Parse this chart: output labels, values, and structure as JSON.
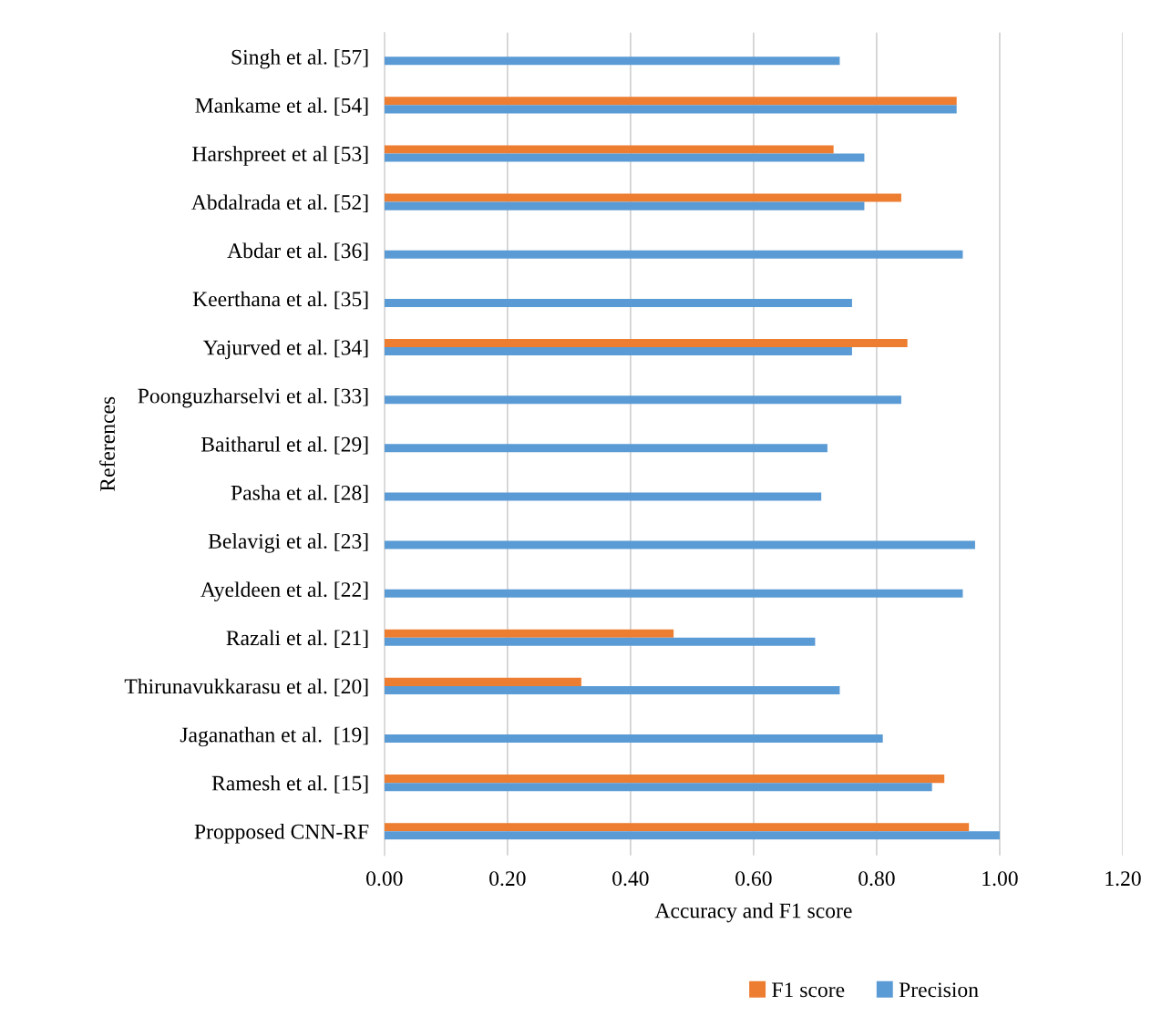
{
  "chart_data": {
    "type": "bar",
    "orientation": "horizontal",
    "xlabel": "Accuracy and F1 score",
    "ylabel": "References",
    "categories": [
      "Singh et al. [57]",
      "Mankame et al. [54]",
      "Harshpreet et al [53]",
      "Abdalrada et al. [52]",
      "Abdar et al. [36]",
      "Keerthana et al. [35]",
      "Yajurved et al. [34]",
      "Poonguzharselvi et al. [33]",
      "Baitharul et al. [29]",
      "Pasha et al. [28]",
      "Belavigi et al. [23]",
      "Ayeldeen et al. [22]",
      "Razali et al. [21]",
      "Thirunavukkarasu et al. [20]",
      "Jaganathan et al.  [19]",
      "Ramesh et al. [15]",
      "Propposed CNN-RF"
    ],
    "series": [
      {
        "name": "F1 score",
        "color": "#ed7d31",
        "values": [
          null,
          0.93,
          0.73,
          0.84,
          null,
          null,
          0.85,
          null,
          null,
          null,
          null,
          null,
          0.47,
          0.32,
          null,
          0.91,
          0.95
        ]
      },
      {
        "name": "Precision",
        "color": "#5b9bd5",
        "values": [
          0.74,
          0.93,
          0.78,
          0.78,
          0.94,
          0.76,
          0.76,
          0.84,
          0.72,
          0.71,
          0.96,
          0.94,
          0.7,
          0.74,
          0.81,
          0.89,
          1.0
        ]
      }
    ],
    "xlim": [
      0,
      1.2
    ],
    "xticks": [
      {
        "value": 0,
        "label": "0.00"
      },
      {
        "value": 0.2,
        "label": "0.20"
      },
      {
        "value": 0.4,
        "label": "0.40"
      },
      {
        "value": 0.6,
        "label": "0.60"
      },
      {
        "value": 0.8,
        "label": "0.80"
      },
      {
        "value": 1.0,
        "label": "1.00"
      },
      {
        "value": 1.2,
        "label": "1.20"
      }
    ],
    "grid": "x",
    "legend": "bottom"
  }
}
